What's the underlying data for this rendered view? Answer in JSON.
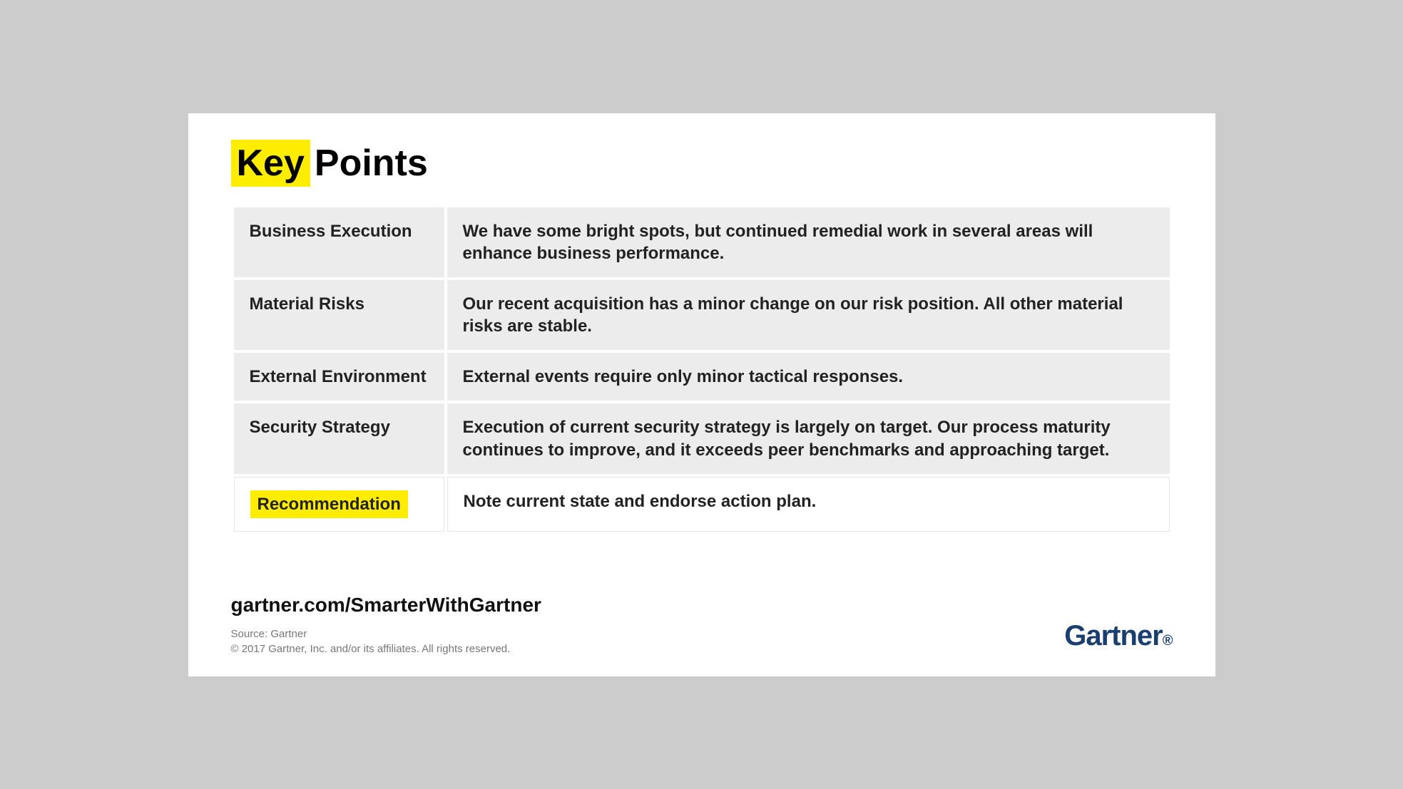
{
  "title": {
    "highlight": "Key",
    "rest": "Points",
    "highlight_bg": "#ffed00"
  },
  "rows": [
    {
      "label": "Business Execution",
      "desc": "We have some bright spots, but continued remedial work in several areas will enhance business performance.",
      "highlighted": false
    },
    {
      "label": "Material Risks",
      "desc": "Our recent acquisition has a minor change on our risk position. All other material risks are stable.",
      "highlighted": false
    },
    {
      "label": "External Environment",
      "desc": "External events require only minor tactical responses.",
      "highlighted": false
    },
    {
      "label": "Security Strategy",
      "desc": "Execution of current security strategy is largely on target. Our process maturity continues to improve, and it exceeds peer benchmarks and approaching target.",
      "highlighted": false
    },
    {
      "label": "Recommendation",
      "desc": "Note current state and endorse action plan.",
      "highlighted": true
    }
  ],
  "footer": {
    "url": "gartner.com/SmarterWithGartner",
    "source_line1": "Source: Gartner",
    "source_line2": "© 2017 Gartner, Inc. and/or its affiliates. All rights reserved."
  },
  "logo": {
    "text": "Gartner",
    "color": "#1a3e6f"
  },
  "colors": {
    "page_bg": "#cccccc",
    "slide_bg": "#ffffff",
    "cell_bg": "#ececec",
    "highlight": "#ffed00",
    "text": "#222222",
    "muted": "#777777"
  }
}
